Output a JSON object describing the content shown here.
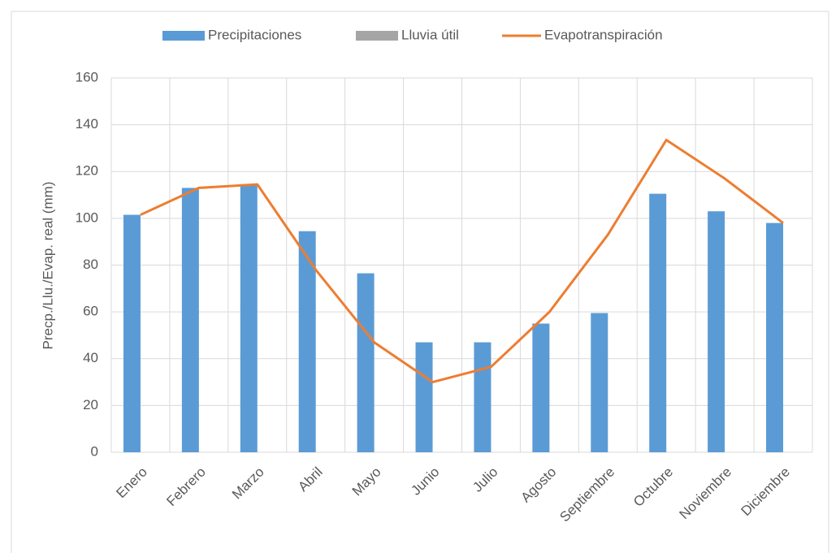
{
  "chart_data": {
    "type": "bar_line",
    "y_label": "Precp./Llu./Evap. real (mm)",
    "categories": [
      "Enero",
      "Febrero",
      "Marzo",
      "Abril",
      "Mayo",
      "Junio",
      "Julio",
      "Agosto",
      "Septiembre",
      "Octubre",
      "Noviembre",
      "Diciembre"
    ],
    "series": [
      {
        "name": "Precipitaciones",
        "type": "bar",
        "color": "#5b9bd5",
        "values": [
          101.5,
          113,
          114,
          94.5,
          76.5,
          47,
          47,
          55,
          59.5,
          110.5,
          103,
          98
        ]
      },
      {
        "name": "Lluvia útil",
        "type": "bar",
        "color": "#a5a5a5",
        "values": [
          null,
          null,
          null,
          null,
          null,
          null,
          null,
          null,
          null,
          null,
          null,
          null
        ]
      },
      {
        "name": "Evapotranspiración",
        "type": "line",
        "color": "#ed7d31",
        "values": [
          101.5,
          113,
          114.5,
          78,
          47,
          30,
          36.5,
          60,
          93,
          133.5,
          117,
          98
        ]
      }
    ],
    "ylim": [
      0,
      160
    ],
    "yticks": [
      0,
      20,
      40,
      60,
      80,
      100,
      120,
      140,
      160
    ],
    "grid": true,
    "legend": "top"
  }
}
